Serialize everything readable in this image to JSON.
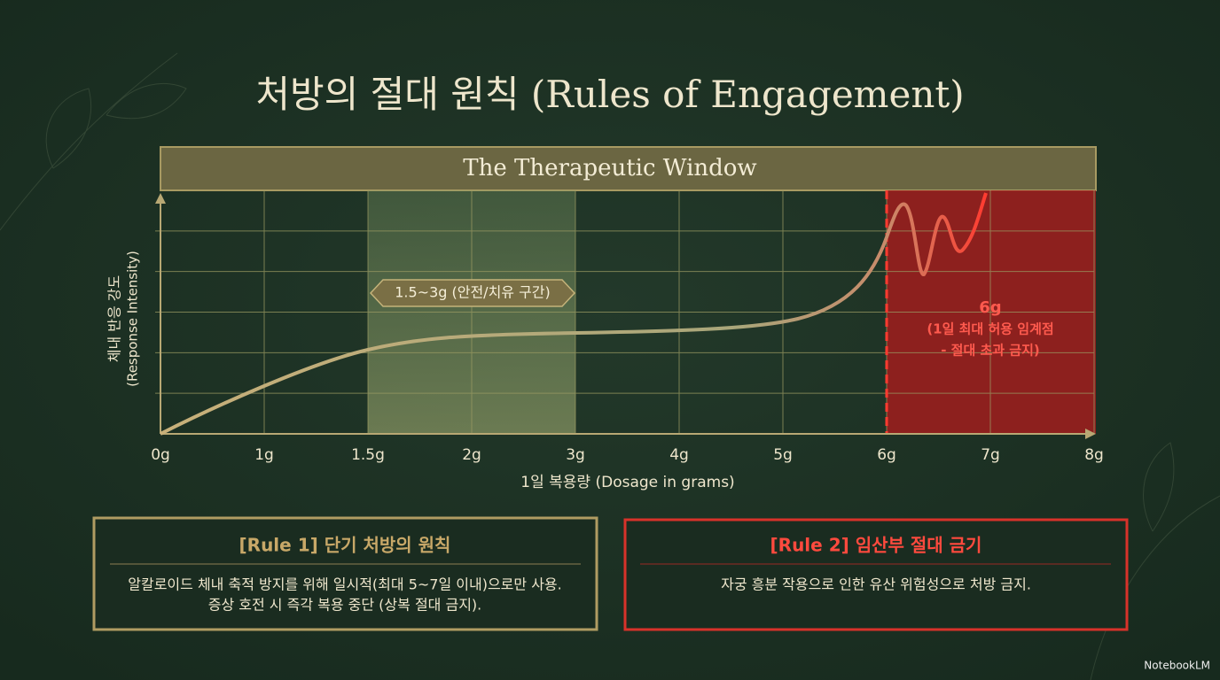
{
  "title": "처방의 절대 원칙 (Rules of Engagement)",
  "chart_data": {
    "type": "line",
    "header": "The Therapeutic Window",
    "y_label": [
      "체내 반응 강도",
      "(Response Intensity)"
    ],
    "x_label": "1일 복용량 (Dosage in grams)",
    "categories": [
      "0g",
      "1g",
      "1.5g",
      "2g",
      "3g",
      "4g",
      "5g",
      "6g",
      "7g",
      "8g"
    ],
    "safe_zone_label": "1.5~3g (안전/치유 구간)",
    "limit_annotation": [
      "6g",
      "(1일 최대 허용 임계점",
      "- 절대 초과 금지)"
    ]
  },
  "rules": [
    {
      "title": "[Rule 1] 단기 처방의 원칙",
      "lines": [
        "알칼로이드 체내 축적 방지를 위해 일시적(최대 5~7일 이내)으로만 사용.",
        "증상 호전 시 즉각 복용 중단 (상복 절대 금지)."
      ]
    },
    {
      "title": "[Rule 2] 임산부 절대 금기",
      "lines": [
        "자궁 흥분 작용으로 인한 유산 위험성으로 처방 금지."
      ]
    }
  ],
  "watermark": "NotebookLM"
}
